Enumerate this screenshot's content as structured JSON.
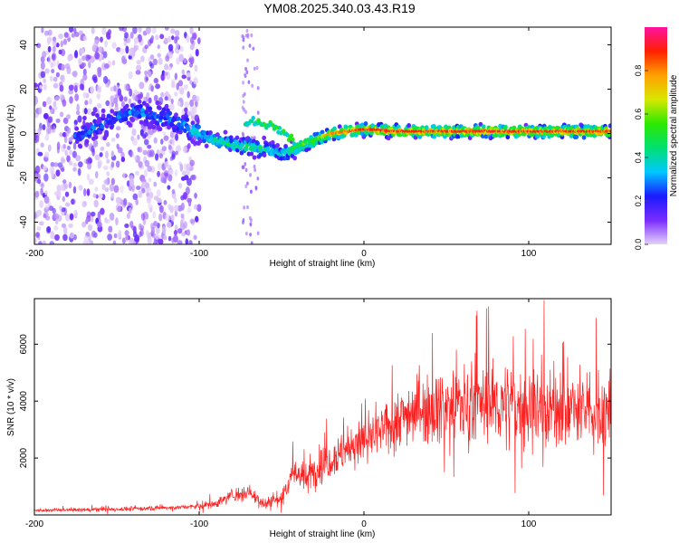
{
  "title": "YM08.2025.340.03.43.R19",
  "chart_data": [
    {
      "type": "heatmap",
      "xlabel": "Height of straight line (km)",
      "ylabel": "Frequency (Hz)",
      "xlim": [
        -200,
        150
      ],
      "ylim": [
        -50,
        48
      ],
      "xticks": [
        -200,
        -100,
        0,
        100
      ],
      "yticks": [
        -40,
        -20,
        0,
        20,
        40
      ],
      "colorbar": {
        "label": "Normalized spectral amplitude",
        "range": [
          0,
          1
        ],
        "ticks": [
          0.0,
          0.2,
          0.4,
          0.6,
          0.8
        ],
        "tick_labels": [
          "0.0",
          "0.2",
          "0.4",
          "0.6",
          "0.8"
        ],
        "colormap": [
          "#e4d2f8",
          "#7a2cff",
          "#1a1aff",
          "#00c8ff",
          "#00e070",
          "#2ce800",
          "#d8e800",
          "#ffa000",
          "#ff2000",
          "#ff10a0"
        ]
      },
      "ridge": {
        "x": [
          -175,
          -160,
          -140,
          -120,
          -100,
          -90,
          -80,
          -70,
          -60,
          -50,
          -45,
          -40,
          -30,
          -20,
          -10,
          0,
          20,
          40,
          60,
          80,
          100,
          120,
          150
        ],
        "frequency": [
          -2,
          4,
          10,
          7,
          0,
          -3,
          -5,
          -6,
          -7,
          -9,
          -8,
          -6,
          -3,
          0,
          1,
          2,
          1,
          1,
          1,
          1,
          1,
          1,
          1
        ],
        "amplitude": [
          0.25,
          0.25,
          0.28,
          0.3,
          0.35,
          0.4,
          0.45,
          0.5,
          0.45,
          0.35,
          0.45,
          0.55,
          0.6,
          0.7,
          0.75,
          0.8,
          0.8,
          0.78,
          0.8,
          0.82,
          0.8,
          0.8,
          0.78
        ]
      },
      "upper_branch": {
        "x": [
          -72,
          -65,
          -55,
          -48,
          -42
        ],
        "frequency": [
          5,
          5,
          3,
          0,
          -3
        ]
      }
    },
    {
      "type": "line",
      "xlabel": "Height of straight line (km)",
      "ylabel": "SNR (10 * v/v)",
      "xlim": [
        -200,
        150
      ],
      "ylim": [
        0,
        7600
      ],
      "xticks": [
        -200,
        -100,
        0,
        100
      ],
      "yticks": [
        2000,
        4000,
        6000
      ],
      "color": "#ff2020",
      "envelope": {
        "x": [
          -200,
          -150,
          -120,
          -100,
          -90,
          -80,
          -70,
          -60,
          -50,
          -45,
          -40,
          -35,
          -30,
          -20,
          -10,
          0,
          10,
          20,
          30,
          40,
          60,
          80,
          100,
          120,
          140,
          150
        ],
        "mean": [
          150,
          200,
          250,
          300,
          400,
          700,
          800,
          400,
          600,
          1300,
          1500,
          1200,
          1600,
          2000,
          2300,
          2600,
          2900,
          3400,
          3700,
          3800,
          3900,
          3900,
          3800,
          3700,
          3600,
          3600
        ],
        "spread": [
          50,
          80,
          80,
          100,
          150,
          250,
          300,
          250,
          400,
          500,
          500,
          550,
          600,
          700,
          700,
          700,
          800,
          900,
          1100,
          1200,
          1300,
          1400,
          1400,
          1300,
          1300,
          1300
        ]
      }
    }
  ]
}
